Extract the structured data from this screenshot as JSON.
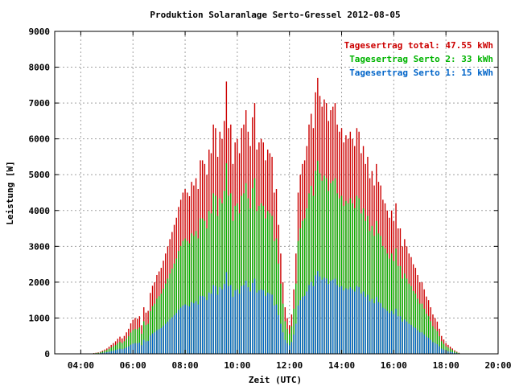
{
  "chart_data": {
    "type": "bar",
    "title": "Produktion Solaranlage Serto-Gressel 2012-08-05",
    "xlabel": "Zeit (UTC)",
    "ylabel": "Leistung [W]",
    "ylim": [
      0,
      9000
    ],
    "yticks": [
      "0",
      "1000",
      "2000",
      "3000",
      "4000",
      "5000",
      "6000",
      "7000",
      "8000",
      "9000"
    ],
    "xticks": [
      "04:00",
      "06:00",
      "08:00",
      "10:00",
      "12:00",
      "14:00",
      "16:00",
      "18:00",
      "20:00"
    ],
    "xlim_hours": [
      3,
      20
    ],
    "grid": true,
    "legend_position": "top-right",
    "legend": [
      {
        "text": "Tagesertrag total: 47.55 kWh",
        "color": "#cc0000"
      },
      {
        "text": "Tagesertrag Serto 2: 33 kWh",
        "color": "#00b400"
      },
      {
        "text": "Tagesertrag Serto 1: 15 kWh",
        "color": "#0064c8"
      }
    ],
    "series": [
      {
        "name": "Tagesertrag total: 47.55 kWh",
        "color": "#cc0000",
        "start_time": "04:00",
        "interval_minutes": 5,
        "values": [
          0,
          0,
          0,
          0,
          0,
          0,
          20,
          30,
          40,
          60,
          90,
          120,
          150,
          200,
          250,
          300,
          350,
          420,
          480,
          430,
          500,
          600,
          700,
          850,
          950,
          1000,
          980,
          1050,
          800,
          1300,
          1150,
          1200,
          1700,
          1900,
          2000,
          2200,
          2300,
          2400,
          2600,
          2800,
          3000,
          3200,
          3400,
          3600,
          3800,
          4100,
          4300,
          4500,
          4600,
          4500,
          4400,
          4800,
          4700,
          4900,
          4600,
          5400,
          5400,
          5300,
          5000,
          5700,
          5600,
          6400,
          6300,
          5500,
          6200,
          6000,
          6500,
          7600,
          6300,
          6400,
          5300,
          5900,
          6000,
          5600,
          6300,
          6400,
          6800,
          6200,
          5800,
          6600,
          7000,
          5700,
          5900,
          6000,
          5900,
          5400,
          5700,
          5600,
          5500,
          4500,
          4600,
          3600,
          2800,
          2000,
          1300,
          1000,
          800,
          1100,
          1800,
          2800,
          4500,
          5000,
          5300,
          5400,
          5800,
          6400,
          6700,
          6300,
          7300,
          7700,
          7200,
          6900,
          7100,
          7000,
          6500,
          6800,
          6900,
          7000,
          6400,
          6200,
          6300,
          5900,
          6100,
          6000,
          6200,
          6000,
          5800,
          6300,
          6200,
          5600,
          5800,
          5300,
          5500,
          4900,
          5100,
          4700,
          5300,
          4800,
          4700,
          4300,
          4200,
          4000,
          3800,
          4000,
          3700,
          4200,
          3500,
          3500,
          3000,
          3200,
          3000,
          2800,
          2700,
          2500,
          2400,
          2200,
          2000,
          2000,
          1800,
          1600,
          1500,
          1300,
          1100,
          1000,
          900,
          700,
          500,
          400,
          300,
          250,
          200,
          150,
          100,
          60,
          30,
          10,
          0,
          0
        ]
      },
      {
        "name": "Tagesertrag Serto 2: 33 kWh",
        "color": "#00b400",
        "start_time": "04:00",
        "interval_minutes": 5,
        "values": [
          0,
          0,
          0,
          0,
          0,
          0,
          14,
          21,
          28,
          42,
          63,
          84,
          105,
          140,
          175,
          210,
          245,
          294,
          336,
          301,
          350,
          420,
          490,
          595,
          665,
          700,
          686,
          735,
          560,
          910,
          805,
          840,
          1190,
          1330,
          1400,
          1540,
          1610,
          1680,
          1820,
          1960,
          2100,
          2240,
          2380,
          2520,
          2660,
          2870,
          3010,
          3150,
          3220,
          3150,
          3080,
          3360,
          3290,
          3430,
          3220,
          3780,
          3780,
          3710,
          3500,
          3990,
          3920,
          4480,
          4410,
          3850,
          4340,
          4200,
          4550,
          5320,
          4410,
          4480,
          3710,
          4130,
          4200,
          3920,
          4410,
          4480,
          4760,
          4340,
          4060,
          4620,
          4900,
          3990,
          4130,
          4200,
          4130,
          3780,
          3990,
          3920,
          3850,
          3150,
          3220,
          2520,
          1960,
          1400,
          910,
          700,
          560,
          770,
          1260,
          1960,
          3150,
          3500,
          3710,
          3780,
          4060,
          4480,
          4690,
          4410,
          5110,
          5390,
          5040,
          4830,
          4970,
          4900,
          4550,
          4760,
          4830,
          4900,
          4480,
          4340,
          4410,
          4130,
          4270,
          4200,
          4340,
          4200,
          4060,
          4410,
          4340,
          3920,
          4060,
          3710,
          3850,
          3430,
          3570,
          3290,
          3710,
          3360,
          3290,
          3010,
          2940,
          2800,
          2660,
          2800,
          2590,
          2940,
          2450,
          2450,
          2100,
          2240,
          2100,
          1960,
          1890,
          1750,
          1680,
          1540,
          1400,
          1400,
          1260,
          1120,
          1050,
          910,
          770,
          700,
          630,
          490,
          350,
          280,
          210,
          175,
          140,
          105,
          70,
          42,
          21,
          7,
          0,
          0
        ]
      },
      {
        "name": "Tagesertrag Serto 1: 15 kWh",
        "color": "#0064c8",
        "start_time": "04:00",
        "interval_minutes": 5,
        "values": [
          0,
          0,
          0,
          0,
          0,
          0,
          6,
          9,
          12,
          18,
          27,
          36,
          45,
          60,
          75,
          90,
          105,
          126,
          144,
          129,
          150,
          180,
          210,
          255,
          285,
          300,
          294,
          315,
          240,
          390,
          345,
          360,
          510,
          570,
          600,
          660,
          690,
          720,
          780,
          840,
          900,
          960,
          1020,
          1080,
          1140,
          1230,
          1290,
          1350,
          1380,
          1350,
          1320,
          1440,
          1410,
          1470,
          1380,
          1620,
          1620,
          1590,
          1500,
          1710,
          1680,
          1920,
          1890,
          1650,
          1860,
          1800,
          1950,
          2280,
          1890,
          1920,
          1590,
          1770,
          1800,
          1680,
          1890,
          1920,
          2040,
          1860,
          1740,
          1980,
          2100,
          1710,
          1770,
          1800,
          1770,
          1620,
          1710,
          1680,
          1650,
          1350,
          1380,
          1080,
          840,
          600,
          390,
          300,
          240,
          330,
          540,
          840,
          1350,
          1500,
          1590,
          1620,
          1740,
          1920,
          2010,
          1890,
          2190,
          2310,
          2160,
          2070,
          2130,
          2100,
          1950,
          2040,
          2070,
          2100,
          1920,
          1860,
          1890,
          1770,
          1830,
          1800,
          1860,
          1800,
          1740,
          1890,
          1860,
          1680,
          1740,
          1590,
          1650,
          1470,
          1530,
          1410,
          1590,
          1440,
          1410,
          1290,
          1260,
          1200,
          1140,
          1200,
          1110,
          1260,
          1050,
          1050,
          900,
          960,
          900,
          840,
          810,
          750,
          720,
          660,
          600,
          600,
          540,
          480,
          450,
          390,
          330,
          300,
          270,
          210,
          150,
          120,
          90,
          75,
          60,
          45,
          30,
          18,
          9,
          3,
          0,
          0
        ]
      }
    ]
  }
}
